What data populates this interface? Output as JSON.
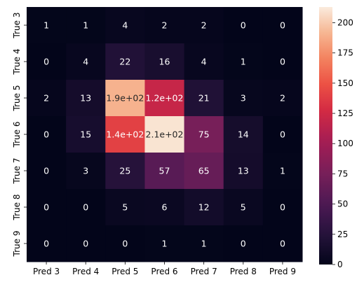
{
  "chart_data": {
    "type": "heatmap",
    "title": "",
    "xlabel": "",
    "ylabel": "",
    "x_labels": [
      "Pred 3",
      "Pred 4",
      "Pred 5",
      "Pred 6",
      "Pred 7",
      "Pred 8",
      "Pred 9"
    ],
    "y_labels": [
      "True 3",
      "True 4",
      "True 5",
      "True 6",
      "True 7",
      "True 8",
      "True 9"
    ],
    "values": [
      [
        1,
        1,
        4,
        2,
        2,
        0,
        0
      ],
      [
        0,
        4,
        22,
        16,
        4,
        1,
        0
      ],
      [
        2,
        13,
        190,
        120,
        21,
        3,
        2
      ],
      [
        0,
        15,
        140,
        210,
        75,
        14,
        0
      ],
      [
        0,
        3,
        25,
        57,
        65,
        13,
        1
      ],
      [
        0,
        0,
        5,
        6,
        12,
        5,
        0
      ],
      [
        0,
        0,
        0,
        1,
        1,
        0,
        0
      ]
    ],
    "annotations": [
      [
        "1",
        "1",
        "4",
        "2",
        "2",
        "0",
        "0"
      ],
      [
        "0",
        "4",
        "22",
        "16",
        "4",
        "1",
        "0"
      ],
      [
        "2",
        "13",
        "1.9e+02",
        "1.2e+02",
        "21",
        "3",
        "2"
      ],
      [
        "0",
        "15",
        "1.4e+02",
        "2.1e+02",
        "75",
        "14",
        "0"
      ],
      [
        "0",
        "3",
        "25",
        "57",
        "65",
        "13",
        "1"
      ],
      [
        "0",
        "0",
        "5",
        "6",
        "12",
        "5",
        "0"
      ],
      [
        "0",
        "0",
        "0",
        "1",
        "1",
        "0",
        "0"
      ]
    ],
    "colorbar": {
      "min": 0,
      "max": 213,
      "ticks": [
        0,
        25,
        50,
        75,
        100,
        125,
        150,
        175,
        200
      ],
      "colormap": "rocket"
    },
    "grid": false,
    "legend": "colorbar-right"
  }
}
